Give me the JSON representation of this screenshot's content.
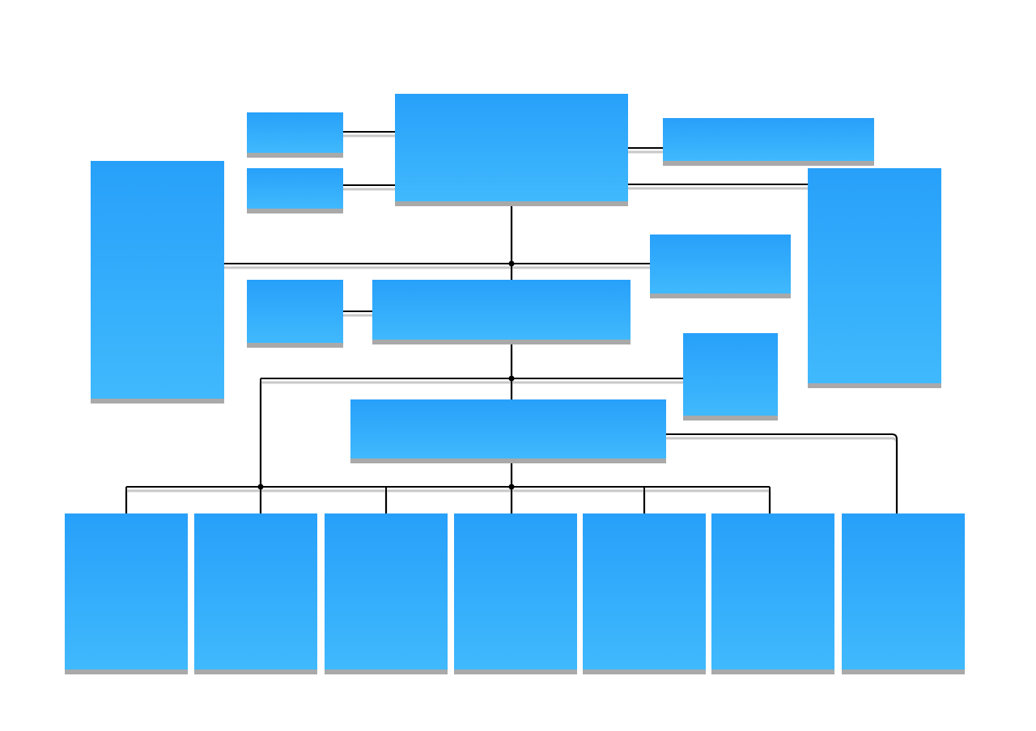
{
  "diagram": {
    "type": "organization-chart",
    "labels": "none",
    "colors": {
      "box_top": "#27a0fa",
      "box_bottom": "#40b9fd",
      "box_shadow": "#a9a9a9",
      "connector": "#000000",
      "connector_shadow": "#c8c8c8",
      "background": "#ffffff"
    }
  }
}
